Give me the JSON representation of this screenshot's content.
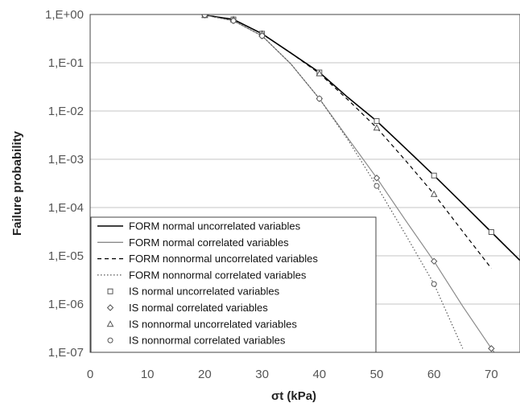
{
  "chart_data": {
    "type": "line",
    "title": "",
    "xlabel": "σt (kPa)",
    "ylabel": "Failure probability",
    "x_ticks": [
      "0",
      "10",
      "20",
      "30",
      "40",
      "50",
      "60",
      "70"
    ],
    "y_ticks": [
      "1,E+00",
      "1,E-01",
      "1,E-02",
      "1,E-03",
      "1,E-04",
      "1,E-05",
      "1,E-06",
      "1,E-07"
    ],
    "xlim": [
      0,
      75
    ],
    "ylim": [
      1e-07,
      1
    ],
    "y_scale": "log",
    "grid": "horizontal",
    "legend_position": "bottom-left",
    "series": [
      {
        "name": "FORM normal uncorrelated variables",
        "kind": "line",
        "style": "solid",
        "color": "#000000",
        "x": [
          20,
          25,
          30,
          35,
          40,
          45,
          50,
          55,
          60,
          65,
          70,
          75
        ],
        "y": [
          0.97,
          0.79,
          0.4,
          0.16,
          0.063,
          0.019,
          0.0062,
          0.0017,
          0.00046,
          0.00012,
          3.1e-05,
          8e-06
        ]
      },
      {
        "name": "FORM normal correlated variables",
        "kind": "line",
        "style": "solid",
        "color": "#8a8a8a",
        "x": [
          20,
          25,
          30,
          35,
          40,
          45,
          50,
          55,
          60,
          65,
          70,
          70.5
        ],
        "y": [
          0.97,
          0.74,
          0.36,
          0.095,
          0.018,
          0.0027,
          0.00041,
          5.5e-05,
          7.7e-06,
          9e-07,
          1.2e-07,
          1e-07
        ]
      },
      {
        "name": "FORM nonnormal uncorrelated variables",
        "kind": "line",
        "style": "dashed",
        "color": "#000000",
        "x": [
          20,
          25,
          30,
          35,
          40,
          45,
          50,
          55,
          60,
          65,
          70
        ],
        "y": [
          0.97,
          0.79,
          0.4,
          0.16,
          0.06,
          0.017,
          0.0045,
          0.00095,
          0.00019,
          3.2e-05,
          5.5e-06
        ]
      },
      {
        "name": "FORM nonnormal correlated variables",
        "kind": "line",
        "style": "dotted",
        "color": "#555555",
        "x": [
          20,
          25,
          30,
          35,
          40,
          45,
          50,
          55,
          60,
          65
        ],
        "y": [
          0.97,
          0.74,
          0.36,
          0.095,
          0.018,
          0.0025,
          0.00028,
          2.8e-05,
          2.6e-06,
          1.2e-07
        ]
      },
      {
        "name": "IS normal uncorrelated variables",
        "kind": "marker",
        "marker": "square",
        "x": [
          20,
          25,
          30,
          40,
          50,
          60,
          70
        ],
        "y": [
          0.97,
          0.79,
          0.4,
          0.063,
          0.0062,
          0.00046,
          3.1e-05
        ]
      },
      {
        "name": "IS normal correlated variables",
        "kind": "marker",
        "marker": "diamond",
        "x": [
          20,
          25,
          30,
          40,
          50,
          60,
          70
        ],
        "y": [
          0.97,
          0.74,
          0.36,
          0.018,
          0.00041,
          7.7e-06,
          1.2e-07
        ]
      },
      {
        "name": "IS nonnormal uncorrelated variables",
        "kind": "marker",
        "marker": "triangle",
        "x": [
          20,
          25,
          30,
          40,
          50,
          60
        ],
        "y": [
          0.97,
          0.79,
          0.4,
          0.06,
          0.0045,
          0.00019
        ]
      },
      {
        "name": "IS nonnormal correlated variables",
        "kind": "marker",
        "marker": "circle",
        "x": [
          20,
          25,
          30,
          40,
          50,
          60
        ],
        "y": [
          0.97,
          0.74,
          0.36,
          0.018,
          0.00028,
          2.6e-06
        ]
      }
    ]
  }
}
